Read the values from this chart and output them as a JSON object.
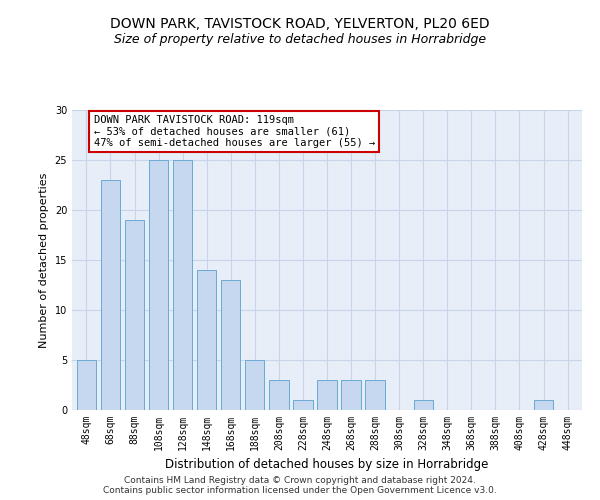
{
  "title1": "DOWN PARK, TAVISTOCK ROAD, YELVERTON, PL20 6ED",
  "title2": "Size of property relative to detached houses in Horrabridge",
  "xlabel": "Distribution of detached houses by size in Horrabridge",
  "ylabel": "Number of detached properties",
  "categories": [
    "48sqm",
    "68sqm",
    "88sqm",
    "108sqm",
    "128sqm",
    "148sqm",
    "168sqm",
    "188sqm",
    "208sqm",
    "228sqm",
    "248sqm",
    "268sqm",
    "288sqm",
    "308sqm",
    "328sqm",
    "348sqm",
    "368sqm",
    "388sqm",
    "408sqm",
    "428sqm",
    "448sqm"
  ],
  "values": [
    5,
    23,
    19,
    25,
    25,
    14,
    13,
    5,
    3,
    1,
    3,
    3,
    3,
    0,
    1,
    0,
    0,
    0,
    0,
    1,
    0
  ],
  "bar_color": "#c5d8ef",
  "bar_edge_color": "#6aaad4",
  "annotation_text": "DOWN PARK TAVISTOCK ROAD: 119sqm\n← 53% of detached houses are smaller (61)\n47% of semi-detached houses are larger (55) →",
  "annotation_box_color": "white",
  "annotation_box_edge": "#cc0000",
  "ylim": [
    0,
    30
  ],
  "yticks": [
    0,
    5,
    10,
    15,
    20,
    25,
    30
  ],
  "footer1": "Contains HM Land Registry data © Crown copyright and database right 2024.",
  "footer2": "Contains public sector information licensed under the Open Government Licence v3.0.",
  "background_color": "#e8eef8",
  "grid_color": "#c8d4e8",
  "title1_fontsize": 10,
  "title2_fontsize": 9,
  "xlabel_fontsize": 8.5,
  "ylabel_fontsize": 8,
  "tick_fontsize": 7,
  "annotation_fontsize": 7.5,
  "footer_fontsize": 6.5
}
